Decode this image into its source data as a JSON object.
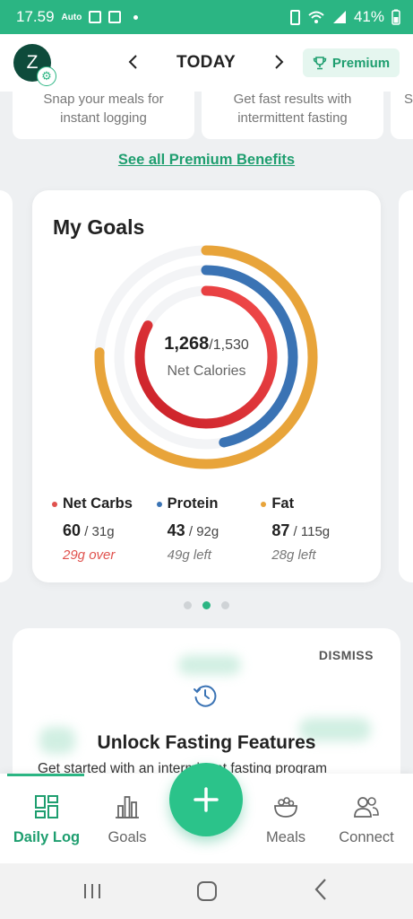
{
  "status_bar": {
    "time": "17.59",
    "indicator_text": "Auto",
    "battery": "41%"
  },
  "header": {
    "avatar_initial": "Z",
    "date_label": "TODAY",
    "premium_label": "Premium"
  },
  "benefits": {
    "items": [
      {
        "line1": "Snap your meals for",
        "line2": "instant logging"
      },
      {
        "line1": "Get fast results with",
        "line2": "intermittent fasting"
      },
      {
        "line1": "S",
        "line2": ""
      }
    ],
    "see_all_label": "See all Premium Benefits"
  },
  "goals": {
    "title": "My Goals",
    "calories_consumed": "1,268",
    "calories_goal": "/1,530",
    "calories_label": "Net Calories",
    "rings": {
      "calories_fraction": 0.829,
      "carbs_fraction": 1.0,
      "protein_fraction": 0.467,
      "fat_fraction": 0.757
    },
    "macros": [
      {
        "name": "Net Carbs",
        "value": "60",
        "goal": " / 31g",
        "status": "29g over",
        "color": "#e0524e"
      },
      {
        "name": "Protein",
        "value": "43",
        "goal": " / 92g",
        "status": "49g left",
        "color": "#3a73b4"
      },
      {
        "name": "Fat",
        "value": "87",
        "goal": " / 115g",
        "status": "28g left",
        "color": "#e8a43a"
      }
    ]
  },
  "fasting": {
    "dismiss_label": "DISMISS",
    "title": "Unlock Fasting Features",
    "subtitle": "Get started with an intermittent fasting program"
  },
  "bottom_nav": {
    "tabs": [
      {
        "label": "Daily Log"
      },
      {
        "label": "Goals"
      },
      {
        "label": "Meals"
      },
      {
        "label": "Connect"
      }
    ]
  },
  "colors": {
    "accent": "#2bb583",
    "carbs": "#e0524e",
    "protein": "#3a73b4",
    "fat": "#e8a43a"
  }
}
